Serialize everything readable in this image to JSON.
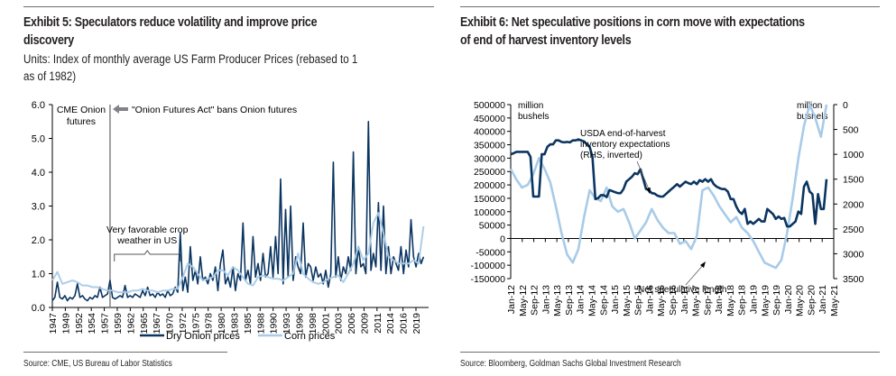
{
  "left": {
    "title_line1": "Exhibit 5: Speculators reduce volatility and improve price",
    "title_line2": "discovery",
    "subtitle_line1": "Units: Index of monthly average US Farm Producer Prices (rebased to 1",
    "subtitle_line2": "as of 1982)",
    "source": "Source: CME, US Bureau of Labor Statistics"
  },
  "right": {
    "title_line1": "Exhibit 6: Net speculative positions in corn move with expectations",
    "title_line2": "of end of harvest inventory levels",
    "source": "Source: Bloomberg, Goldman Sachs Global Investment Research"
  },
  "chart_data": [
    {
      "type": "line",
      "title": "Exhibit 5: Speculators reduce volatility and improve price discovery",
      "ylabel": "Index of monthly average US Farm Producer Prices (rebased to 1 as of 1982)",
      "ylim": [
        0,
        6
      ],
      "yticks": [
        "0.0",
        "1.0",
        "2.0",
        "3.0",
        "4.0",
        "5.0",
        "6.0"
      ],
      "xlim": [
        1947,
        2022
      ],
      "xticks": [
        "1947",
        "1949",
        "1952",
        "1954",
        "1957",
        "1959",
        "1962",
        "1965",
        "1967",
        "1970",
        "1972",
        "1975",
        "1978",
        "1980",
        "1983",
        "1985",
        "1988",
        "1990",
        "1993",
        "1996",
        "1998",
        "2001",
        "2003",
        "2006",
        "2009",
        "2011",
        "2014",
        "2016",
        "2019"
      ],
      "legend": "bottom",
      "colors": {
        "onion": "#0b3561",
        "corn": "#a8cbe8",
        "annotation": "#808285"
      },
      "series": [
        {
          "name": "Dry Onion prices",
          "x": [
            1947,
            1947.5,
            1948,
            1948.5,
            1949,
            1949.5,
            1950,
            1950.5,
            1951,
            1951.5,
            1952,
            1952.5,
            1953,
            1953.5,
            1954,
            1954.5,
            1955,
            1955.5,
            1956,
            1956.5,
            1957,
            1957.5,
            1958,
            1958.5,
            1959,
            1959.5,
            1960,
            1960.5,
            1961,
            1961.5,
            1962,
            1962.5,
            1963,
            1963.5,
            1964,
            1964.5,
            1965,
            1965.5,
            1966,
            1966.5,
            1967,
            1967.5,
            1968,
            1968.5,
            1969,
            1969.5,
            1970,
            1970.5,
            1971,
            1971.5,
            1972,
            1972.5,
            1973,
            1973.5,
            1974,
            1974.5,
            1975,
            1975.5,
            1976,
            1976.5,
            1977,
            1977.5,
            1978,
            1978.5,
            1979,
            1979.5,
            1980,
            1980.5,
            1981,
            1981.5,
            1982,
            1982.5,
            1983,
            1983.5,
            1984,
            1984.5,
            1985,
            1985.5,
            1986,
            1986.5,
            1987,
            1987.5,
            1988,
            1988.5,
            1989,
            1989.5,
            1990,
            1990.5,
            1991,
            1991.5,
            1992,
            1992.5,
            1993,
            1993.5,
            1994,
            1994.5,
            1995,
            1995.5,
            1996,
            1996.5,
            1997,
            1997.5,
            1998,
            1998.5,
            1999,
            1999.5,
            2000,
            2000.5,
            2001,
            2001.5,
            2002,
            2002.5,
            2003,
            2003.5,
            2004,
            2004.5,
            2005,
            2005.5,
            2006,
            2006.5,
            2007,
            2007.5,
            2008,
            2008.5,
            2009,
            2009.5,
            2010,
            2010.5,
            2011,
            2011.5,
            2012,
            2012.5,
            2013,
            2013.5,
            2014,
            2014.5,
            2015,
            2015.5,
            2016,
            2016.5,
            2017,
            2017.5,
            2018,
            2018.5,
            2019,
            2019.5,
            2020,
            2020.5,
            2021
          ],
          "values": [
            0.2,
            0.3,
            0.75,
            0.3,
            0.25,
            0.35,
            0.2,
            0.3,
            0.25,
            0.35,
            0.7,
            0.3,
            0.35,
            0.25,
            0.2,
            0.3,
            0.25,
            0.35,
            0.3,
            0.6,
            0.3,
            0.35,
            0.4,
            0.8,
            0.3,
            0.25,
            0.3,
            0.35,
            0.3,
            0.65,
            0.3,
            0.35,
            0.3,
            0.4,
            0.35,
            0.3,
            0.5,
            0.35,
            0.6,
            0.35,
            0.4,
            0.3,
            0.45,
            0.35,
            0.4,
            0.3,
            0.5,
            0.35,
            0.4,
            0.6,
            0.45,
            2.2,
            0.5,
            0.9,
            0.45,
            1.8,
            0.8,
            1.1,
            0.7,
            1.5,
            0.8,
            0.9,
            0.7,
            1.0,
            0.8,
            1.2,
            0.5,
            1.3,
            1.7,
            0.7,
            0.9,
            0.6,
            1.2,
            0.5,
            1.0,
            0.8,
            2.5,
            0.8,
            1.1,
            0.7,
            2.1,
            0.9,
            1.3,
            0.8,
            1.6,
            0.9,
            1.0,
            1.8,
            0.9,
            2.1,
            1.0,
            3.8,
            0.7,
            2.9,
            0.9,
            3.0,
            0.8,
            1.5,
            1.2,
            1.0,
            2.5,
            0.9,
            1.3,
            1.2,
            0.8,
            1.2,
            0.9,
            1.0,
            0.7,
            1.1,
            0.6,
            1.0,
            4.3,
            0.9,
            1.5,
            0.8,
            1.2,
            1.0,
            1.5,
            1.1,
            4.6,
            1.0,
            1.8,
            1.2,
            1.3,
            1.0,
            5.5,
            1.1,
            1.6,
            1.2,
            3.1,
            1.1,
            3.0,
            1.0,
            1.8,
            1.0,
            1.5,
            1.3,
            1.1,
            1.8,
            1.0,
            1.7,
            1.2,
            2.6,
            1.5,
            1.2,
            1.6,
            1.3,
            1.5
          ]
        },
        {
          "name": "Corn prices",
          "x": [
            1947,
            1948,
            1949,
            1950,
            1951,
            1952,
            1953,
            1954,
            1955,
            1956,
            1957,
            1958,
            1959,
            1960,
            1961,
            1962,
            1963,
            1964,
            1965,
            1966,
            1967,
            1968,
            1969,
            1970,
            1971,
            1972,
            1973,
            1974,
            1975,
            1976,
            1977,
            1978,
            1979,
            1980,
            1981,
            1982,
            1983,
            1984,
            1985,
            1986,
            1987,
            1988,
            1989,
            1990,
            1991,
            1992,
            1993,
            1994,
            1995,
            1996,
            1997,
            1998,
            1999,
            2000,
            2001,
            2002,
            2003,
            2004,
            2005,
            2006,
            2007,
            2008,
            2009,
            2010,
            2011,
            2012,
            2013,
            2014,
            2015,
            2016,
            2017,
            2018,
            2019,
            2020,
            2021
          ],
          "values": [
            0.8,
            1.05,
            0.7,
            0.75,
            0.8,
            0.75,
            0.65,
            0.65,
            0.6,
            0.6,
            0.55,
            0.5,
            0.5,
            0.45,
            0.45,
            0.45,
            0.5,
            0.5,
            0.55,
            0.5,
            0.5,
            0.45,
            0.5,
            0.5,
            0.55,
            0.55,
            0.9,
            1.3,
            1.2,
            1.0,
            0.8,
            0.85,
            0.9,
            1.1,
            1.1,
            0.95,
            1.2,
            1.1,
            0.9,
            0.7,
            0.65,
            0.9,
            0.95,
            0.9,
            0.85,
            0.85,
            0.8,
            0.9,
            1.0,
            1.6,
            1.0,
            0.85,
            0.75,
            0.7,
            0.75,
            0.85,
            0.9,
            0.95,
            0.75,
            1.0,
            1.3,
            1.8,
            1.4,
            1.6,
            2.5,
            2.8,
            2.2,
            1.5,
            1.4,
            1.3,
            1.3,
            1.3,
            1.4,
            1.3,
            2.4
          ]
        }
      ],
      "annotations": [
        {
          "text_line1": "CME Onion",
          "text_line2": "futures",
          "at_x": 1947.5
        },
        {
          "text": "\"Onion Futures Act\" bans Onion futures",
          "vline_x": 1958.5,
          "arrow": "left"
        },
        {
          "text_line1": "Very favorable crop",
          "text_line2": "weather in US",
          "bracket_from": 1959,
          "bracket_to": 1972.5
        }
      ]
    },
    {
      "type": "line",
      "title": "Exhibit 6: Net speculative positions in corn move with expectations of end of harvest inventory levels",
      "ylim_left": [
        -150000,
        500000
      ],
      "yticks_left": [
        "-150000",
        "-100000",
        "-50000",
        "0",
        "50000",
        "100000",
        "150000",
        "200000",
        "250000",
        "300000",
        "350000",
        "400000",
        "450000",
        "500000"
      ],
      "ylabel_left": "million bushels",
      "ylim_right": [
        3500,
        0
      ],
      "yticks_right": [
        "0",
        "500",
        "1000",
        "1500",
        "2000",
        "2500",
        "3000",
        "3500"
      ],
      "ylabel_right": "million bushels",
      "right_axis_inverted": true,
      "xticks": [
        "Jan-12",
        "May-12",
        "Sep-12",
        "Jan-13",
        "May-13",
        "Sep-13",
        "Jan-14",
        "May-14",
        "Sep-14",
        "Jan-15",
        "May-15",
        "Sep-15",
        "Jan-16",
        "May-16",
        "Sep-16",
        "Jan-17",
        "May-17",
        "Sep-17",
        "Jan-18",
        "May-18",
        "Sep-18",
        "Jan-19",
        "May-19",
        "Sep-19",
        "Jan-20",
        "May-20",
        "Sep-20",
        "Jan-21",
        "May-21"
      ],
      "colors": {
        "inventory": "#0b3561",
        "spec": "#a8cbe8"
      },
      "series": [
        {
          "name": "USDA end-of-harvest inventory expectations (RHS, inverted)",
          "axis": "right",
          "x_index": [
            0,
            1,
            2,
            3,
            4,
            5,
            6,
            7,
            8,
            9,
            10,
            11,
            12,
            13,
            14,
            15,
            16,
            17,
            18,
            19,
            20,
            21,
            22,
            23,
            24,
            25,
            26,
            27,
            28,
            29,
            30,
            31,
            32,
            33,
            34,
            35,
            36,
            37,
            38,
            39,
            40,
            41,
            42,
            43,
            44,
            45,
            46,
            47,
            48,
            49,
            50,
            51,
            52,
            53,
            54,
            55,
            56,
            57,
            58,
            59,
            60,
            61,
            62,
            63,
            64,
            65,
            66,
            67,
            68,
            69,
            70,
            71,
            72,
            73,
            74,
            75,
            76,
            77,
            78,
            79,
            80,
            81,
            82,
            83,
            84,
            85,
            86,
            87,
            88,
            89,
            90,
            91,
            92,
            93,
            94,
            95,
            96,
            97,
            98,
            99,
            100,
            101,
            102,
            103,
            104,
            105,
            106,
            107,
            108,
            109,
            110,
            111,
            112
          ],
          "values": [
            1000,
            980,
            950,
            950,
            950,
            950,
            950,
            1050,
            1850,
            1850,
            1850,
            1000,
            1000,
            850,
            800,
            800,
            720,
            720,
            750,
            760,
            750,
            760,
            720,
            720,
            700,
            720,
            740,
            800,
            850,
            1050,
            1900,
            1880,
            1820,
            1820,
            1860,
            1720,
            1740,
            1760,
            1780,
            1780,
            1700,
            1550,
            1500,
            1450,
            1380,
            1400,
            1300,
            1500,
            1700,
            1720,
            1780,
            1790,
            1830,
            1850,
            1850,
            1800,
            1750,
            1700,
            1650,
            1600,
            1650,
            1600,
            1550,
            1580,
            1600,
            1550,
            1600,
            1520,
            1550,
            1500,
            1550,
            1500,
            1600,
            1650,
            1680,
            1700,
            1700,
            1750,
            1900,
            1900,
            2050,
            2150,
            2200,
            2100,
            2400,
            2350,
            2400,
            2350,
            2300,
            2350,
            2350,
            2100,
            2150,
            2200,
            2300,
            2250,
            2300,
            2280,
            2450,
            2450,
            2400,
            2350,
            2150,
            2200,
            1650,
            1550,
            1750,
            1800,
            2400,
            1800,
            2100,
            2100,
            1500
          ]
        },
        {
          "name": "Net speculative length",
          "axis": "left",
          "x_index": [
            0,
            2,
            4,
            6,
            8,
            10,
            12,
            14,
            16,
            18,
            20,
            22,
            24,
            26,
            28,
            30,
            32,
            34,
            36,
            38,
            40,
            42,
            44,
            46,
            48,
            50,
            52,
            54,
            56,
            58,
            60,
            62,
            64,
            66,
            68,
            70,
            72,
            74,
            76,
            78,
            80,
            82,
            84,
            86,
            88,
            90,
            92,
            94,
            96,
            98,
            100,
            102,
            104,
            106,
            108,
            110,
            112
          ],
          "values": [
            260000,
            220000,
            190000,
            200000,
            240000,
            300000,
            260000,
            210000,
            120000,
            20000,
            -60000,
            -90000,
            -40000,
            80000,
            180000,
            150000,
            140000,
            190000,
            120000,
            100000,
            110000,
            60000,
            0,
            30000,
            60000,
            110000,
            70000,
            40000,
            20000,
            20000,
            -20000,
            -10000,
            -40000,
            10000,
            180000,
            190000,
            160000,
            120000,
            90000,
            60000,
            80000,
            40000,
            20000,
            -10000,
            -50000,
            -90000,
            -100000,
            -110000,
            -80000,
            20000,
            150000,
            300000,
            420000,
            500000,
            450000,
            380000,
            500000
          ]
        }
      ],
      "annotations": [
        {
          "text_line1": "USDA end-of-harvest",
          "text_line2": "inventory expectations",
          "text_line3": "(RHS, inverted)",
          "arrow_to": "inventory"
        },
        {
          "text": "Net speculative length",
          "arrow_to": "spec"
        }
      ]
    }
  ]
}
